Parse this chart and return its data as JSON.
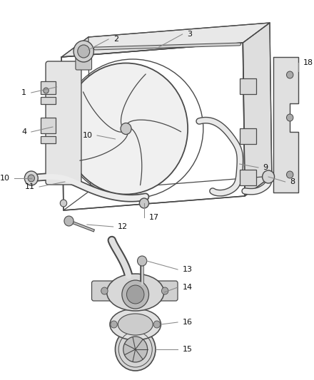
{
  "bg_color": "#ffffff",
  "line_color": "#4a4a4a",
  "label_color": "#222222",
  "fig_width": 4.4,
  "fig_height": 5.33,
  "dpi": 100
}
